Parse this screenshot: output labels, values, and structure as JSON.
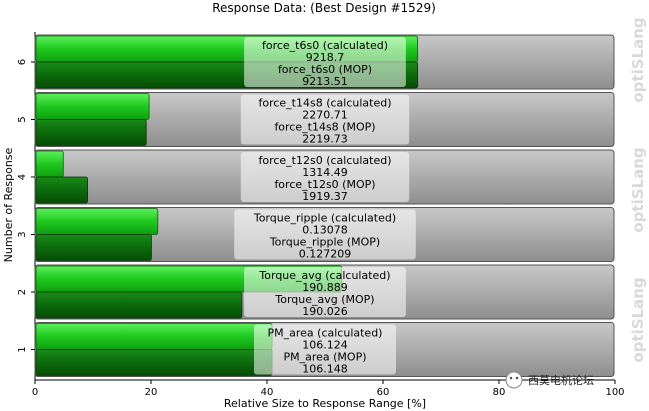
{
  "chart_data": {
    "type": "bar",
    "title": "Response Data: (Best Design #1529)",
    "xlabel": "Relative Size to Response Range [%]",
    "ylabel": "Number of Response",
    "xlim": [
      0,
      100
    ],
    "xticks": [
      "0",
      "20",
      "40",
      "60",
      "80",
      "100"
    ],
    "rows": [
      {
        "num": "6",
        "calc_label": "force_t6s0 (calculated)",
        "calc_value": "9218.7",
        "mop_label": "force_t6s0 (MOP)",
        "mop_value": "9213.51",
        "calc_pct": 65.8,
        "mop_pct": 65.8
      },
      {
        "num": "5",
        "calc_label": "force_t14s8 (calculated)",
        "calc_value": "2270.71",
        "mop_label": "force_t14s8 (MOP)",
        "mop_value": "2219.73",
        "calc_pct": 19.5,
        "mop_pct": 19.0
      },
      {
        "num": "4",
        "calc_label": "force_t12s0 (calculated)",
        "calc_value": "1314.49",
        "mop_label": "force_t12s0 (MOP)",
        "mop_value": "1919.37",
        "calc_pct": 4.7,
        "mop_pct": 8.9
      },
      {
        "num": "3",
        "calc_label": "Torque_ripple (calculated)",
        "calc_value": "0.13078",
        "mop_label": "Torque_ripple (MOP)",
        "mop_value": "0.127209",
        "calc_pct": 21.0,
        "mop_pct": 19.9
      },
      {
        "num": "2",
        "calc_label": "Torque_avg (calculated)",
        "calc_value": "190.889",
        "mop_label": "Torque_avg (MOP)",
        "mop_value": "190.026",
        "calc_pct": 52.7,
        "mop_pct": 35.5
      },
      {
        "num": "1",
        "calc_label": "PM_area (calculated)",
        "calc_value": "106.124",
        "mop_label": "PM_area (MOP)",
        "mop_value": "106.148",
        "calc_pct": 40.7,
        "mop_pct": 40.7
      }
    ],
    "colors": {
      "calculated": "#22cc22",
      "mop": "#0a700a",
      "background_bar": "#a8a8a8"
    }
  },
  "watermark": {
    "text": "optiSLang"
  },
  "overlay": {
    "wechat_text": "西莫电机论坛"
  }
}
